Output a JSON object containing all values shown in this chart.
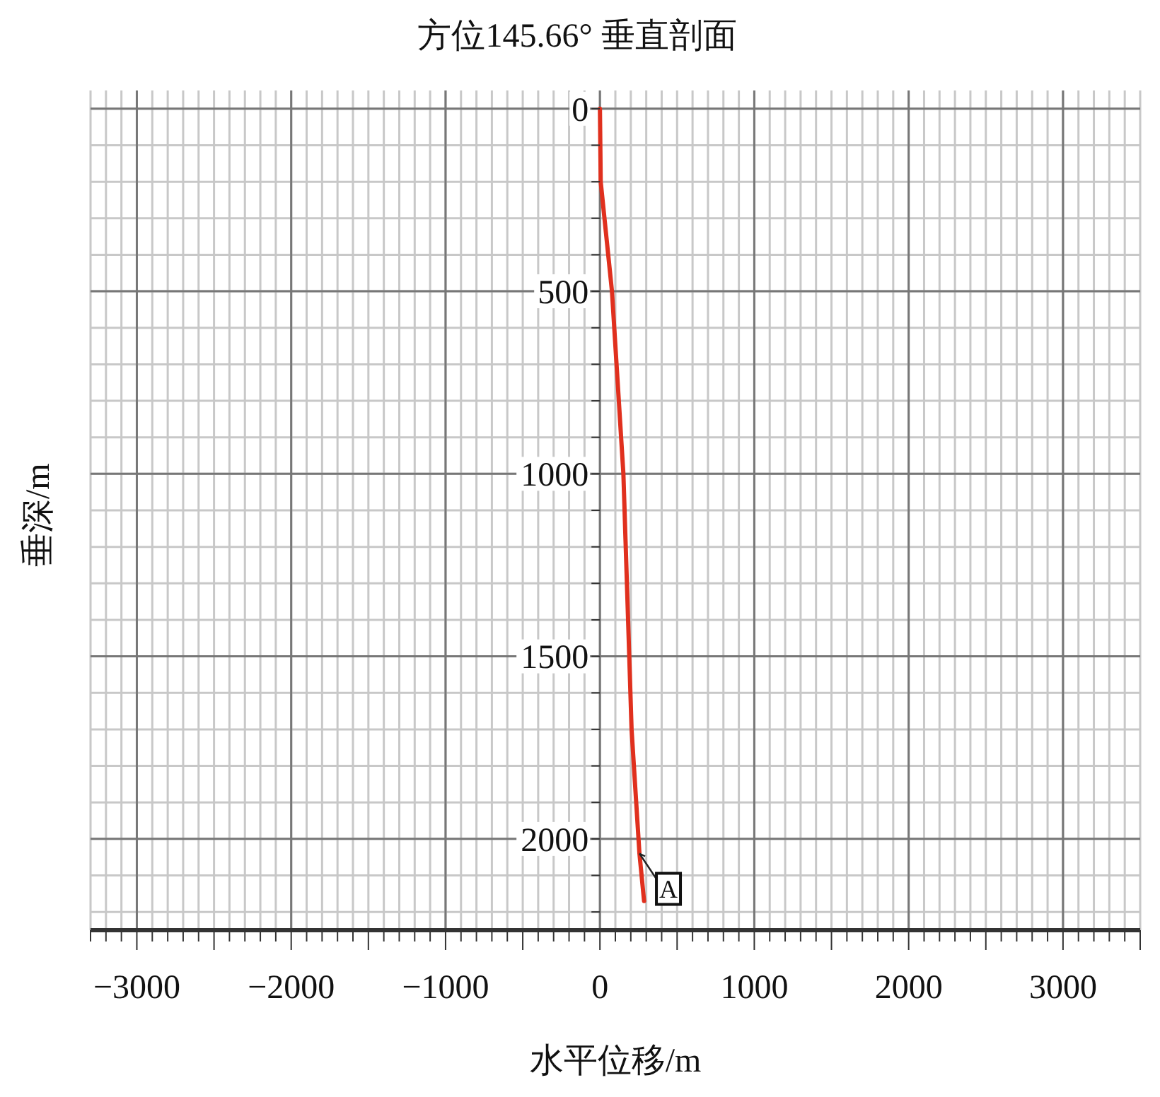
{
  "chart_data": {
    "type": "line",
    "title": "方位145.66° 垂直剖面",
    "xlabel": "水平位移/m",
    "ylabel": "垂深/m",
    "series": [
      {
        "color": "#e0301e",
        "x": [
          0,
          5,
          78,
          152,
          190,
          205,
          250,
          256,
          286
        ],
        "values": [
          0,
          200,
          500,
          1000,
          1500,
          1700,
          2000,
          2040,
          2170
        ]
      }
    ],
    "annotations": [
      {
        "text": "A",
        "x": 256,
        "y": 2040
      }
    ],
    "xlim": [
      -3300,
      3500
    ],
    "ylim": [
      2250,
      -50
    ],
    "xticks": [
      {
        "value": -3300,
        "label": null
      },
      {
        "value": -3200,
        "label": null
      },
      {
        "value": -3100,
        "label": null
      },
      -3000,
      {
        "value": -2900,
        "label": null
      },
      {
        "value": -2800,
        "label": null
      },
      {
        "value": -2700,
        "label": null
      },
      {
        "value": -2600,
        "label": null
      },
      {
        "value": -2500,
        "label": null
      },
      {
        "value": -2400,
        "label": null
      },
      {
        "value": -2300,
        "label": null
      },
      {
        "value": -2200,
        "label": null
      },
      {
        "value": -2100,
        "label": null
      },
      -2000,
      {
        "value": -1900,
        "label": null
      },
      {
        "value": -1800,
        "label": null
      },
      {
        "value": -1700,
        "label": null
      },
      {
        "value": -1600,
        "label": null
      },
      {
        "value": -1500,
        "label": null
      },
      {
        "value": -1400,
        "label": null
      },
      {
        "value": -1300,
        "label": null
      },
      {
        "value": -1200,
        "label": null
      },
      {
        "value": -1100,
        "label": null
      },
      -1000,
      {
        "value": -900,
        "label": null
      },
      {
        "value": -800,
        "label": null
      },
      {
        "value": -700,
        "label": null
      },
      {
        "value": -600,
        "label": null
      },
      {
        "value": -500,
        "label": null
      },
      {
        "value": -400,
        "label": null
      },
      {
        "value": -300,
        "label": null
      },
      {
        "value": -200,
        "label": null
      },
      {
        "value": -100,
        "label": null
      },
      0,
      {
        "value": 100,
        "label": null
      },
      {
        "value": 200,
        "label": null
      },
      {
        "value": 300,
        "label": null
      },
      {
        "value": 400,
        "label": null
      },
      {
        "value": 500,
        "label": null
      },
      {
        "value": 600,
        "label": null
      },
      {
        "value": 700,
        "label": null
      },
      {
        "value": 800,
        "label": null
      },
      {
        "value": 900,
        "label": null
      },
      1000,
      {
        "value": 1100,
        "label": null
      },
      {
        "value": 1200,
        "label": null
      },
      {
        "value": 1300,
        "label": null
      },
      {
        "value": 1400,
        "label": null
      },
      {
        "value": 1500,
        "label": null
      },
      {
        "value": 1600,
        "label": null
      },
      {
        "value": 1700,
        "label": null
      },
      {
        "value": 1800,
        "label": null
      },
      {
        "value": 1900,
        "label": null
      },
      2000,
      {
        "value": 2100,
        "label": null
      },
      {
        "value": 2200,
        "label": null
      },
      {
        "value": 2300,
        "label": null
      },
      {
        "value": 2400,
        "label": null
      },
      {
        "value": 2500,
        "label": null
      },
      {
        "value": 2600,
        "label": null
      },
      {
        "value": 2700,
        "label": null
      },
      {
        "value": 2800,
        "label": null
      },
      {
        "value": 2900,
        "label": null
      },
      3000,
      {
        "value": 3100,
        "label": null
      },
      {
        "value": 3200,
        "label": null
      },
      {
        "value": 3300,
        "label": null
      },
      {
        "value": 3400,
        "label": null
      },
      {
        "value": 3500,
        "label": null
      }
    ],
    "yticks": [
      0,
      {
        "value": 100,
        "label": null
      },
      {
        "value": 200,
        "label": null
      },
      {
        "value": 300,
        "label": null
      },
      {
        "value": 400,
        "label": null
      },
      500,
      {
        "value": 600,
        "label": null
      },
      {
        "value": 700,
        "label": null
      },
      {
        "value": 800,
        "label": null
      },
      {
        "value": 900,
        "label": null
      },
      1000,
      {
        "value": 1100,
        "label": null
      },
      {
        "value": 1200,
        "label": null
      },
      {
        "value": 1300,
        "label": null
      },
      {
        "value": 1400,
        "label": null
      },
      1500,
      {
        "value": 1600,
        "label": null
      },
      {
        "value": 1700,
        "label": null
      },
      {
        "value": 1800,
        "label": null
      },
      {
        "value": 1900,
        "label": null
      },
      2000,
      {
        "value": 2100,
        "label": null
      },
      {
        "value": 2200,
        "label": null
      }
    ],
    "grid": true,
    "marker": "none",
    "line_style": "solid"
  }
}
